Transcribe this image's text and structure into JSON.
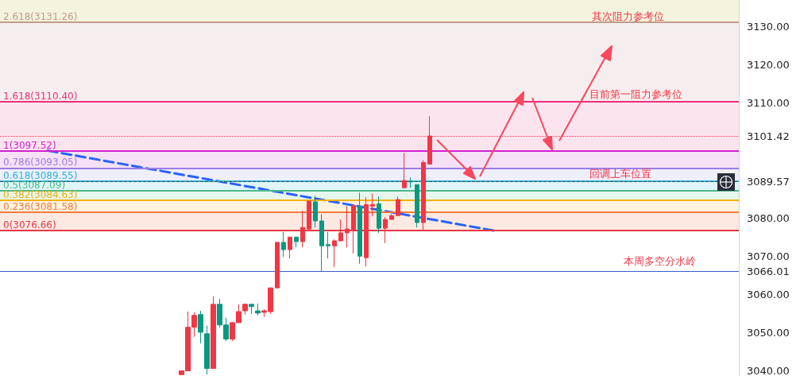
{
  "chart_data": {
    "type": "candlestick",
    "categories": [
      null,
      null,
      null,
      null,
      null,
      null,
      null,
      null,
      null,
      null,
      null,
      null,
      null,
      null,
      null,
      null,
      null,
      null,
      null,
      null,
      null,
      null,
      null,
      null,
      null,
      null,
      null,
      null,
      null,
      null,
      null,
      null,
      null,
      null,
      null,
      null,
      null,
      null,
      null,
      null,
      null,
      null,
      null,
      null,
      null,
      null,
      null,
      null,
      null,
      null,
      null,
      null,
      null,
      null,
      null,
      null,
      null,
      null,
      null,
      null,
      null,
      null,
      null,
      null,
      null,
      null,
      null,
      null,
      null,
      null,
      null,
      null,
      null,
      null,
      null,
      null,
      null,
      null,
      null,
      null,
      null,
      null,
      null,
      null,
      null,
      null,
      null,
      null,
      null,
      null,
      null,
      null,
      null,
      null,
      null,
      null,
      null,
      null,
      null,
      null,
      null,
      null,
      null,
      null,
      null,
      null,
      null,
      null,
      null,
      null,
      null,
      null,
      null,
      null,
      null,
      null
    ],
    "ohlc": [
      null,
      null,
      null,
      null,
      null,
      null,
      null,
      null,
      null,
      null,
      null,
      null,
      null,
      null,
      null,
      null,
      null,
      null,
      null,
      null,
      null,
      null,
      null,
      null,
      null,
      null,
      null,
      null,
      [
        3039.0,
        3040.0,
        3039.0,
        3040.0
      ],
      [
        3040.0,
        3055.5,
        3040.0,
        3051.4
      ],
      [
        3051.4,
        3055.3,
        3048.9,
        3054.5
      ],
      [
        3054.7,
        3055.7,
        3047.2,
        3050.1
      ],
      [
        3049.7,
        3051.8,
        3039.0,
        3040.6
      ],
      [
        3040.6,
        3059.5,
        3040.6,
        3057.4
      ],
      [
        3057.4,
        3058.8,
        3051.4,
        3052.0
      ],
      [
        3052.0,
        3053.9,
        3047.8,
        3048.3
      ],
      [
        3048.3,
        3052.8,
        3047.8,
        3052.6
      ],
      [
        3052.6,
        3057.4,
        3052.6,
        3055.5
      ],
      [
        3055.7,
        3057.6,
        3054.7,
        3057.4
      ],
      [
        3057.4,
        3057.4,
        3054.9,
        3056.8
      ],
      [
        3055.7,
        3057.6,
        3054.5,
        3055.1
      ],
      [
        3055.3,
        3056.1,
        3054.1,
        3055.7
      ],
      [
        3055.5,
        3061.7,
        3054.9,
        3061.7
      ],
      [
        3061.7,
        3073.6,
        3061.7,
        3073.6
      ],
      [
        3073.6,
        3076.3,
        3069.8,
        3071.7
      ],
      [
        3071.7,
        3075.0,
        3069.4,
        3075.0
      ],
      [
        3075.0,
        3075.0,
        3072.3,
        3073.8
      ],
      [
        3073.8,
        3081.9,
        3072.3,
        3077.5
      ],
      [
        3077.1,
        3084.4,
        3076.6,
        3084.4
      ],
      [
        3084.2,
        3085.8,
        3077.5,
        3079.2
      ],
      [
        3079.2,
        3081.0,
        3066.1,
        3072.7
      ],
      [
        3073.0,
        3076.3,
        3069.4,
        3072.7
      ],
      [
        3072.7,
        3074.4,
        3067.1,
        3074.0
      ],
      [
        3074.0,
        3079.6,
        3074.0,
        3076.1
      ],
      [
        3076.1,
        3083.1,
        3072.3,
        3077.1
      ],
      [
        3076.9,
        3083.3,
        3070.7,
        3083.3
      ],
      [
        3083.1,
        3086.6,
        3068.0,
        3070.0
      ],
      [
        3069.6,
        3085.4,
        3067.3,
        3083.5
      ],
      [
        3083.1,
        3086.4,
        3080.4,
        3083.5
      ],
      [
        3083.7,
        3085.6,
        3076.1,
        3077.3
      ],
      [
        3077.3,
        3080.2,
        3073.4,
        3079.6
      ],
      [
        3079.6,
        3081.0,
        3079.6,
        3080.6
      ],
      [
        3080.6,
        3085.6,
        3080.6,
        3084.8
      ],
      [
        3087.9,
        3097.0,
        3087.9,
        3089.8
      ],
      [
        3089.6,
        3090.6,
        3087.9,
        3089.4
      ],
      [
        3088.7,
        3088.7,
        3077.5,
        3078.8
      ],
      [
        3078.8,
        3095.1,
        3076.5,
        3094.5
      ],
      [
        3094.1,
        3106.6,
        3093.9,
        3101.42
      ],
      null,
      null,
      null,
      null,
      null,
      null,
      null,
      null,
      null,
      null,
      null,
      null,
      null,
      null,
      null,
      null,
      null,
      null,
      null,
      null,
      null,
      null,
      null,
      null,
      null,
      null,
      null,
      null,
      null,
      null,
      null,
      null,
      null,
      null,
      null,
      null,
      null,
      null,
      null,
      null,
      null,
      null,
      null,
      null,
      null,
      null,
      null,
      null
    ],
    "series": [
      {
        "type": "line",
        "color": "#2962ff",
        "values": [
          null,
          null,
          null,
          null,
          null,
          null,
          null,
          3097.6,
          null,
          null,
          null,
          null,
          null,
          null,
          null,
          null,
          null,
          null,
          null,
          null,
          null,
          null,
          null,
          null,
          null,
          null,
          null,
          null,
          null,
          null,
          null,
          null,
          null,
          null,
          null,
          null,
          null,
          null,
          null,
          null,
          null,
          null,
          null,
          null,
          null,
          null,
          null,
          null,
          null,
          null,
          null,
          null,
          null,
          null,
          null,
          null,
          null,
          null,
          null,
          null,
          null,
          null,
          null,
          null,
          null,
          null,
          null,
          null,
          null,
          null,
          null,
          null,
          null,
          null,
          null,
          null,
          null,
          3076.7,
          null,
          null,
          null,
          null,
          null,
          null,
          null,
          null,
          null,
          null,
          null,
          null,
          null,
          null,
          null,
          null,
          null,
          null,
          null,
          null,
          null,
          null,
          null,
          null,
          null,
          null,
          null,
          null,
          null,
          null,
          null,
          null,
          null,
          null,
          null,
          null,
          null,
          null
        ]
      }
    ],
    "line_style": "dashed",
    "ylim": [
      3038.8,
      3137
    ],
    "yticks": [
      {
        "value": 3040,
        "label": "3040.00"
      },
      {
        "value": 3050,
        "label": "3050.00"
      },
      {
        "value": 3060,
        "label": "3060.00"
      },
      {
        "value": 3066.01,
        "label": "3066.01"
      },
      {
        "value": 3070,
        "label": "3070.00"
      },
      {
        "value": 3080,
        "label": "3080.00"
      },
      {
        "value": 3089.57,
        "label": "3089.57"
      },
      {
        "value": 3101.42,
        "label": "3101.42"
      },
      {
        "value": 3110,
        "label": "3110.00"
      },
      {
        "value": 3120,
        "label": "3120.00"
      },
      {
        "value": 3130,
        "label": "3130.00"
      }
    ],
    "tick_labels": "y",
    "ref_lines": [
      {
        "axis": "y",
        "value": 3076.66,
        "label": "0(3076.66)",
        "color": "#e53946"
      },
      {
        "axis": "y",
        "value": 3081.58,
        "label": "0.236(3081.58)",
        "color": "#f57c3c"
      },
      {
        "axis": "y",
        "value": 3084.63,
        "label": "0.382(3084.63)",
        "color": "#f5b000"
      },
      {
        "axis": "y",
        "value": 3087.09,
        "label": "0.5(3087.09)",
        "color": "#4cba8a"
      },
      {
        "axis": "y",
        "value": 3089.55,
        "label": "0.618(3089.55)",
        "color": "#22b8d6"
      },
      {
        "axis": "y",
        "value": 3093.05,
        "label": "0.786(3093.05)",
        "color": "#9a7ee6"
      },
      {
        "axis": "y",
        "value": 3097.52,
        "label": "1(3097.52)",
        "color": "#d020d0"
      },
      {
        "axis": "y",
        "value": 3110.4,
        "label": "1.618(3110.40)",
        "color": "#ee2f7c"
      },
      {
        "axis": "y",
        "value": 3131.26,
        "label": "2.618(3131.26)",
        "color": "#c29c8c"
      },
      {
        "axis": "y",
        "value": 3101.42,
        "color": "#f23645",
        "line_style": "dotted"
      },
      {
        "axis": "y",
        "value": 3089.57,
        "color": "#555555",
        "line_style": "dashed"
      },
      {
        "axis": "y",
        "value": 3066.01,
        "color": "#3a5fcd",
        "line_style": "solid"
      }
    ],
    "bands": [
      {
        "axis": "y",
        "from": 3076.66,
        "to": 3081.58,
        "color": "#fde9e2"
      },
      {
        "axis": "y",
        "from": 3081.58,
        "to": 3084.63,
        "color": "#fff3e0"
      },
      {
        "axis": "y",
        "from": 3084.63,
        "to": 3087.09,
        "color": "#e6f6ee"
      },
      {
        "axis": "y",
        "from": 3087.09,
        "to": 3089.55,
        "color": "#e0f5f8"
      },
      {
        "axis": "y",
        "from": 3089.55,
        "to": 3093.05,
        "color": "#efeefb"
      },
      {
        "axis": "y",
        "from": 3093.05,
        "to": 3097.52,
        "color": "#f6e0f6"
      },
      {
        "axis": "y",
        "from": 3097.52,
        "to": 3110.4,
        "color": "#fce4ee"
      },
      {
        "axis": "y",
        "from": 3110.4,
        "to": 3131.26,
        "color": "#f6eeee"
      },
      {
        "axis": "y",
        "from": 3131.26,
        "to": 3137,
        "color": "#f3f3de"
      }
    ],
    "annotations": [
      "其次阻力参考位",
      "目前第一阻力参考位",
      "回调上车位置",
      "本周多空分水岭"
    ]
  }
}
